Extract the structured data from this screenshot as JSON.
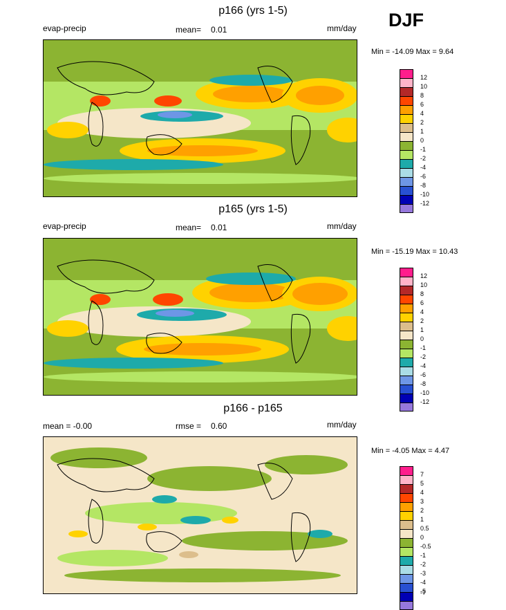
{
  "season": "DJF",
  "panels": [
    {
      "title": "p166 (yrs 1-5)",
      "left_label": "evap-precip",
      "stat_label": "mean=",
      "stat_value": "0.01",
      "units": "mm/day",
      "minmax_text": "Min = -14.09 Max =   9.64",
      "legend_colors": [
        "#ff1e8c",
        "#ffb4c8",
        "#b42828",
        "#ff4600",
        "#ffa000",
        "#ffd200",
        "#dcbe8c",
        "#f5e6c8",
        "#8cb432",
        "#b4e664",
        "#1eaaaa",
        "#aadce6",
        "#6e96e6",
        "#2850d2",
        "#0000b4",
        "#9678dc"
      ],
      "legend_labels": [
        "12",
        "10",
        "8",
        "6",
        "4",
        "2",
        "1",
        "0",
        "-1",
        "-2",
        "-4",
        "-6",
        "-8",
        "-10",
        "-12"
      ]
    },
    {
      "title": "p165 (yrs 1-5)",
      "left_label": "evap-precip",
      "stat_label": "mean=",
      "stat_value": "0.01",
      "units": "mm/day",
      "minmax_text": "Min = -15.19 Max =  10.43",
      "legend_colors": [
        "#ff1e8c",
        "#ffb4c8",
        "#b42828",
        "#ff4600",
        "#ffa000",
        "#ffd200",
        "#dcbe8c",
        "#f5e6c8",
        "#8cb432",
        "#b4e664",
        "#1eaaaa",
        "#aadce6",
        "#6e96e6",
        "#2850d2",
        "#0000b4",
        "#9678dc"
      ],
      "legend_labels": [
        "12",
        "10",
        "8",
        "6",
        "4",
        "2",
        "1",
        "0",
        "-1",
        "-2",
        "-4",
        "-6",
        "-8",
        "-10",
        "-12"
      ]
    },
    {
      "title": "p166 - p165",
      "left_label": "mean =  -0.00",
      "stat_label": "rmse =",
      "stat_value": "0.60",
      "units": "mm/day",
      "minmax_text": "Min =  -4.05 Max =   4.47",
      "legend_colors": [
        "#ff1e8c",
        "#ffb4c8",
        "#b42828",
        "#ff4600",
        "#ffa000",
        "#ffd200",
        "#dcbe8c",
        "#f5e6c8",
        "#8cb432",
        "#b4e664",
        "#1eaaaa",
        "#aadce6",
        "#6e96e6",
        "#2850d2",
        "#0000b4",
        "#9678dc"
      ],
      "legend_labels": [
        "7",
        "5",
        "4",
        "3",
        "2",
        "1",
        "0.5",
        "0",
        "-0.5",
        "-1",
        "-2",
        "-3",
        "-4",
        "-5",
        "-7"
      ]
    }
  ]
}
